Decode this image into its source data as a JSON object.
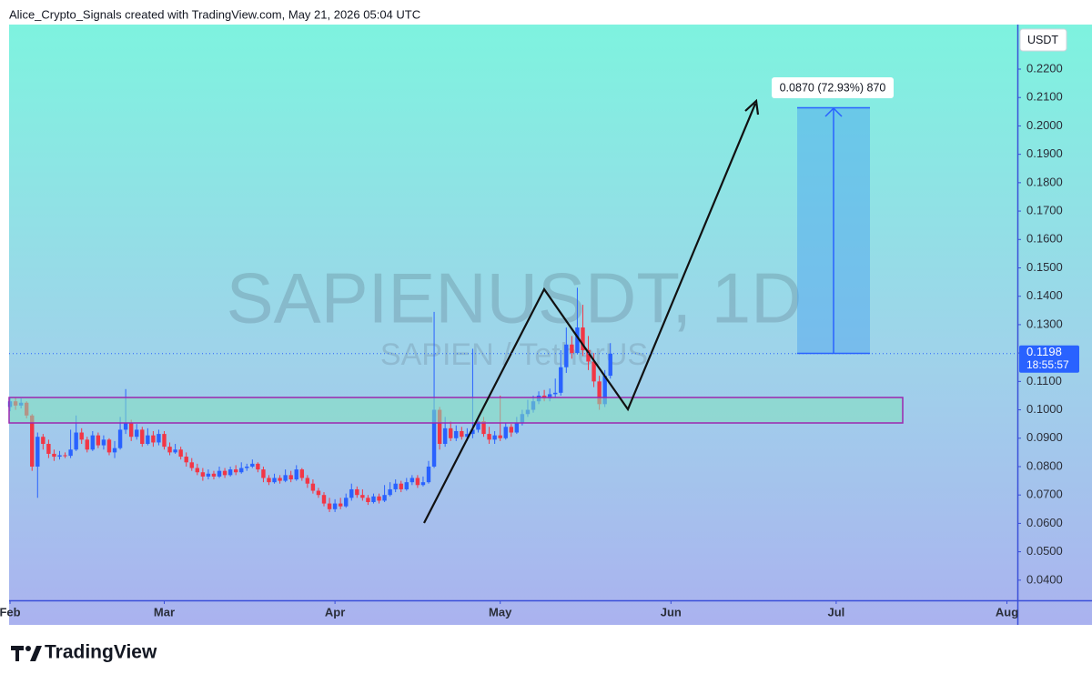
{
  "chart_data": {
    "type": "candlestick",
    "source_note": "Alice_Crypto_Signals created with TradingView.com, May 21, 2026 05:04 UTC",
    "watermark": "SAPIENUSDT, 1D",
    "watermark_subtitle": "SAPIEN / TetherUS",
    "y_axis_label": "USDT",
    "last_price": 0.1198,
    "countdown": "18:55:57",
    "measure_label": "0.0870 (72.93%) 870",
    "brand": "TradingView",
    "up_color": "#2962ff",
    "down_color": "#f23645",
    "xlim": [
      -0.17,
      182.9
    ],
    "xticks": [
      {
        "value": 0,
        "label": "Feb"
      },
      {
        "value": 28,
        "label": "Mar"
      },
      {
        "value": 59,
        "label": "Apr"
      },
      {
        "value": 89,
        "label": "May"
      },
      {
        "value": 120,
        "label": "Jun"
      },
      {
        "value": 150,
        "label": "Jul"
      },
      {
        "value": 181,
        "label": "Aug"
      }
    ],
    "ylim": [
      0.0329,
      0.2357
    ],
    "yticks": [
      {
        "value": 0.04,
        "label": "0.0400"
      },
      {
        "value": 0.05,
        "label": "0.0500"
      },
      {
        "value": 0.06,
        "label": "0.0600"
      },
      {
        "value": 0.07,
        "label": "0.0700"
      },
      {
        "value": 0.08,
        "label": "0.0800"
      },
      {
        "value": 0.09,
        "label": "0.0900"
      },
      {
        "value": 0.1,
        "label": "0.1000"
      },
      {
        "value": 0.11,
        "label": "0.1100"
      },
      {
        "value": 0.12,
        "label": "0.1200"
      },
      {
        "value": 0.13,
        "label": "0.1300"
      },
      {
        "value": 0.14,
        "label": "0.1400"
      },
      {
        "value": 0.15,
        "label": "0.1500"
      },
      {
        "value": 0.16,
        "label": "0.1600"
      },
      {
        "value": 0.17,
        "label": "0.1700"
      },
      {
        "value": 0.18,
        "label": "0.1800"
      },
      {
        "value": 0.19,
        "label": "0.1900"
      },
      {
        "value": 0.2,
        "label": "0.2000"
      },
      {
        "value": 0.21,
        "label": "0.2100"
      },
      {
        "value": 0.22,
        "label": "0.2200"
      }
    ],
    "x": [
      0,
      1,
      2,
      3,
      4,
      5,
      6,
      7,
      8,
      9,
      10,
      11,
      12,
      13,
      14,
      15,
      16,
      17,
      18,
      19,
      20,
      21,
      22,
      23,
      24,
      25,
      26,
      27,
      28,
      29,
      30,
      31,
      32,
      33,
      34,
      35,
      36,
      37,
      38,
      39,
      40,
      41,
      42,
      43,
      44,
      45,
      46,
      47,
      48,
      49,
      50,
      51,
      52,
      53,
      54,
      55,
      56,
      57,
      58,
      59,
      60,
      61,
      62,
      63,
      64,
      65,
      66,
      67,
      68,
      69,
      70,
      71,
      72,
      73,
      74,
      75,
      76,
      77,
      78,
      79,
      80,
      81,
      82,
      83,
      84,
      85,
      86,
      87,
      88,
      89,
      90,
      91,
      92,
      93,
      94,
      95,
      96,
      97,
      98,
      99,
      100,
      101,
      102,
      103,
      104,
      105,
      106,
      107,
      108,
      109
    ],
    "ohlc": [
      [
        0.101,
        0.1045,
        0.0995,
        0.103
      ],
      [
        0.103,
        0.1042,
        0.1,
        0.1015
      ],
      [
        0.1015,
        0.104,
        0.1005,
        0.1025
      ],
      [
        0.1025,
        0.103,
        0.097,
        0.098
      ],
      [
        0.098,
        0.0985,
        0.0785,
        0.08
      ],
      [
        0.08,
        0.092,
        0.069,
        0.0905
      ],
      [
        0.0905,
        0.0915,
        0.086,
        0.088
      ],
      [
        0.088,
        0.0895,
        0.083,
        0.0845
      ],
      [
        0.0845,
        0.086,
        0.082,
        0.0835
      ],
      [
        0.0835,
        0.0855,
        0.0825,
        0.084
      ],
      [
        0.084,
        0.085,
        0.083,
        0.0838
      ],
      [
        0.0838,
        0.093,
        0.083,
        0.086
      ],
      [
        0.086,
        0.098,
        0.0855,
        0.092
      ],
      [
        0.092,
        0.0935,
        0.088,
        0.0895
      ],
      [
        0.0895,
        0.0905,
        0.085,
        0.086
      ],
      [
        0.086,
        0.0925,
        0.0855,
        0.091
      ],
      [
        0.091,
        0.092,
        0.0865,
        0.0875
      ],
      [
        0.0875,
        0.091,
        0.086,
        0.0895
      ],
      [
        0.0895,
        0.09,
        0.084,
        0.085
      ],
      [
        0.085,
        0.089,
        0.083,
        0.0865
      ],
      [
        0.0865,
        0.0975,
        0.086,
        0.093
      ],
      [
        0.093,
        0.1073,
        0.0915,
        0.0955
      ],
      [
        0.0955,
        0.0965,
        0.089,
        0.0905
      ],
      [
        0.0905,
        0.095,
        0.0895,
        0.093
      ],
      [
        0.093,
        0.094,
        0.087,
        0.088
      ],
      [
        0.088,
        0.0935,
        0.0875,
        0.091
      ],
      [
        0.091,
        0.0925,
        0.087,
        0.0885
      ],
      [
        0.0885,
        0.093,
        0.0875,
        0.0915
      ],
      [
        0.0915,
        0.0925,
        0.086,
        0.087
      ],
      [
        0.087,
        0.0885,
        0.084,
        0.085
      ],
      [
        0.085,
        0.088,
        0.0845,
        0.086
      ],
      [
        0.086,
        0.087,
        0.0825,
        0.0835
      ],
      [
        0.0835,
        0.085,
        0.08,
        0.0815
      ],
      [
        0.0815,
        0.083,
        0.0785,
        0.0795
      ],
      [
        0.0795,
        0.081,
        0.077,
        0.078
      ],
      [
        0.078,
        0.0795,
        0.075,
        0.0765
      ],
      [
        0.0765,
        0.079,
        0.0755,
        0.0775
      ],
      [
        0.0775,
        0.0785,
        0.0755,
        0.0765
      ],
      [
        0.0765,
        0.08,
        0.076,
        0.0785
      ],
      [
        0.0785,
        0.0795,
        0.076,
        0.077
      ],
      [
        0.077,
        0.08,
        0.0765,
        0.079
      ],
      [
        0.079,
        0.0805,
        0.077,
        0.078
      ],
      [
        0.078,
        0.0815,
        0.0775,
        0.0795
      ],
      [
        0.0795,
        0.081,
        0.0785,
        0.08
      ],
      [
        0.08,
        0.0825,
        0.0795,
        0.081
      ],
      [
        0.081,
        0.0815,
        0.078,
        0.079
      ],
      [
        0.079,
        0.08,
        0.0745,
        0.076
      ],
      [
        0.076,
        0.077,
        0.0735,
        0.0745
      ],
      [
        0.0745,
        0.0775,
        0.074,
        0.076
      ],
      [
        0.076,
        0.077,
        0.074,
        0.075
      ],
      [
        0.075,
        0.079,
        0.0745,
        0.077
      ],
      [
        0.077,
        0.0785,
        0.0745,
        0.0755
      ],
      [
        0.0755,
        0.0805,
        0.075,
        0.079
      ],
      [
        0.079,
        0.0795,
        0.075,
        0.076
      ],
      [
        0.076,
        0.077,
        0.0725,
        0.074
      ],
      [
        0.074,
        0.0755,
        0.0705,
        0.0715
      ],
      [
        0.0715,
        0.0725,
        0.069,
        0.07
      ],
      [
        0.07,
        0.071,
        0.066,
        0.067
      ],
      [
        0.067,
        0.069,
        0.064,
        0.065
      ],
      [
        0.065,
        0.0685,
        0.064,
        0.067
      ],
      [
        0.067,
        0.069,
        0.065,
        0.066
      ],
      [
        0.066,
        0.0705,
        0.0655,
        0.069
      ],
      [
        0.069,
        0.074,
        0.068,
        0.072
      ],
      [
        0.072,
        0.073,
        0.069,
        0.07
      ],
      [
        0.07,
        0.072,
        0.068,
        0.069
      ],
      [
        0.069,
        0.07,
        0.0665,
        0.0675
      ],
      [
        0.0675,
        0.0705,
        0.067,
        0.0695
      ],
      [
        0.0695,
        0.0705,
        0.067,
        0.068
      ],
      [
        0.068,
        0.0735,
        0.0675,
        0.07
      ],
      [
        0.07,
        0.0745,
        0.0695,
        0.072
      ],
      [
        0.072,
        0.0755,
        0.071,
        0.074
      ],
      [
        0.074,
        0.075,
        0.071,
        0.072
      ],
      [
        0.072,
        0.076,
        0.0715,
        0.0745
      ],
      [
        0.0745,
        0.077,
        0.0735,
        0.076
      ],
      [
        0.076,
        0.077,
        0.0725,
        0.0735
      ],
      [
        0.0735,
        0.0765,
        0.073,
        0.0745
      ],
      [
        0.0745,
        0.082,
        0.074,
        0.08
      ],
      [
        0.08,
        0.1345,
        0.0795,
        0.1
      ],
      [
        0.1,
        0.101,
        0.086,
        0.088
      ],
      [
        0.088,
        0.0975,
        0.087,
        0.0935
      ],
      [
        0.0935,
        0.096,
        0.089,
        0.09
      ],
      [
        0.09,
        0.0945,
        0.089,
        0.0925
      ],
      [
        0.0925,
        0.094,
        0.0895,
        0.0905
      ],
      [
        0.0905,
        0.0935,
        0.089,
        0.0915
      ],
      [
        0.0915,
        0.1215,
        0.09,
        0.093
      ],
      [
        0.093,
        0.098,
        0.092,
        0.096
      ],
      [
        0.096,
        0.0975,
        0.0905,
        0.0915
      ],
      [
        0.0915,
        0.094,
        0.088,
        0.0895
      ],
      [
        0.0895,
        0.0925,
        0.088,
        0.091
      ],
      [
        0.091,
        0.105,
        0.089,
        0.09
      ],
      [
        0.09,
        0.0955,
        0.0895,
        0.094
      ],
      [
        0.094,
        0.095,
        0.0905,
        0.092
      ],
      [
        0.092,
        0.0975,
        0.0915,
        0.0955
      ],
      [
        0.0955,
        0.1,
        0.0945,
        0.0985
      ],
      [
        0.0985,
        0.1035,
        0.0975,
        0.1
      ],
      [
        0.1,
        0.105,
        0.099,
        0.103
      ],
      [
        0.103,
        0.1065,
        0.102,
        0.105
      ],
      [
        0.105,
        0.107,
        0.103,
        0.104
      ],
      [
        0.104,
        0.1075,
        0.103,
        0.1055
      ],
      [
        0.1055,
        0.111,
        0.1045,
        0.106
      ],
      [
        0.106,
        0.121,
        0.105,
        0.115
      ],
      [
        0.115,
        0.129,
        0.113,
        0.123
      ],
      [
        0.123,
        0.126,
        0.118,
        0.12
      ],
      [
        0.12,
        0.143,
        0.1195,
        0.129
      ],
      [
        0.129,
        0.137,
        0.119,
        0.121
      ],
      [
        0.121,
        0.126,
        0.114,
        0.117
      ],
      [
        0.117,
        0.12,
        0.108,
        0.11
      ],
      [
        0.11,
        0.112,
        0.1,
        0.102
      ],
      [
        0.102,
        0.114,
        0.101,
        0.112
      ],
      [
        0.112,
        0.1235,
        0.111,
        0.1198
      ]
    ]
  }
}
